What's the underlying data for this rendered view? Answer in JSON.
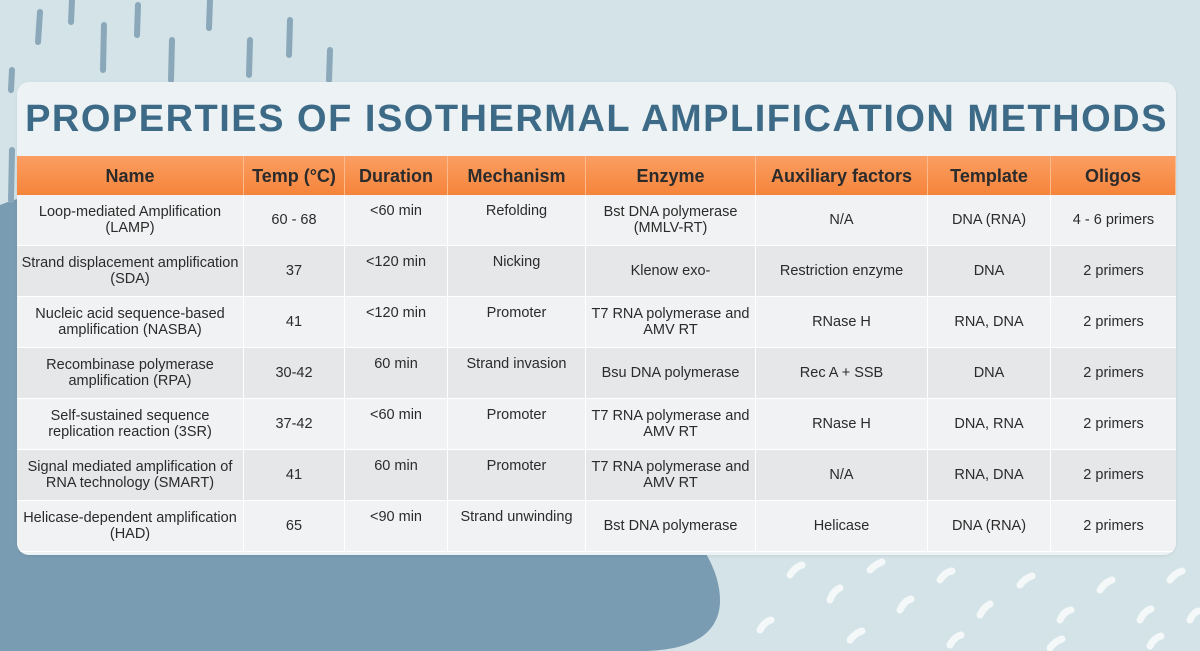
{
  "title": "PROPERTIES OF ISOTHERMAL AMPLIFICATION METHODS",
  "colors": {
    "background": "#d3e3e7",
    "blob": "#7f9fb5",
    "title": "#3d6a87",
    "header": "#f5843b",
    "card": "#edf3f4"
  },
  "table": {
    "headers": [
      "Name",
      "Temp (°C)",
      "Duration",
      "Mechanism",
      "Enzyme",
      "Auxiliary factors",
      "Template",
      "Oligos"
    ],
    "rows": [
      [
        "Loop-mediated Amplification (LAMP)",
        "60 - 68",
        "<60 min",
        "Refolding",
        "Bst DNA polymerase (MMLV-RT)",
        "N/A",
        "DNA (RNA)",
        "4 - 6 primers"
      ],
      [
        "Strand displacement amplification (SDA)",
        "37",
        "<120 min",
        "Nicking",
        "Klenow exo-",
        "Restriction enzyme",
        "DNA",
        "2 primers"
      ],
      [
        "Nucleic acid sequence-based amplification (NASBA)",
        "41",
        "<120 min",
        "Promoter",
        "T7 RNA polymerase and AMV RT",
        "RNase H",
        "RNA, DNA",
        "2 primers"
      ],
      [
        "Recombinase polymerase amplification (RPA)",
        "30-42",
        "60 min",
        "Strand invasion",
        "Bsu DNA polymerase",
        "Rec A + SSB",
        "DNA",
        "2 primers"
      ],
      [
        "Self-sustained sequence replication reaction (3SR)",
        "37-42",
        "<60 min",
        "Promoter",
        "T7 RNA polymerase and AMV RT",
        "RNase H",
        "DNA, RNA",
        "2 primers"
      ],
      [
        "Signal mediated amplification of RNA technology (SMART)",
        "41",
        "60 min",
        "Promoter",
        "T7 RNA polymerase and AMV RT",
        "N/A",
        "RNA, DNA",
        "2 primers"
      ],
      [
        "Helicase-dependent amplification (HAD)",
        "65",
        "<90 min",
        "Strand unwinding",
        "Bst DNA polymerase",
        "Helicase",
        "DNA (RNA)",
        "2 primers"
      ]
    ]
  }
}
